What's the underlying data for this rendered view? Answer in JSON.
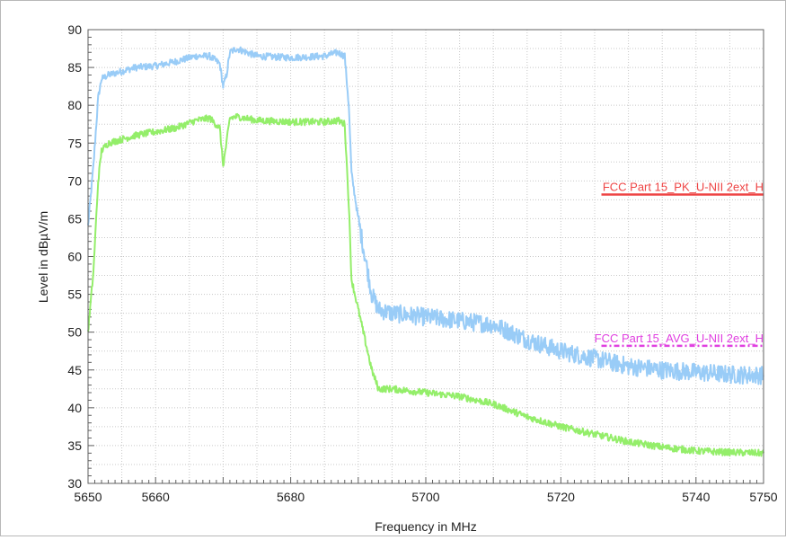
{
  "chart_data": {
    "type": "line",
    "xlabel": "Frequency in MHz",
    "ylabel": "Level in dBµV/m",
    "xlim": [
      5650,
      5750
    ],
    "ylim": [
      30,
      90
    ],
    "x_ticks": [
      "5650",
      "5660",
      "5680",
      "5700",
      "5720",
      "5740",
      "5750"
    ],
    "y_ticks": [
      "30",
      "35",
      "40",
      "45",
      "50",
      "55",
      "60",
      "65",
      "70",
      "75",
      "80",
      "85",
      "90"
    ],
    "grid": true,
    "series": [
      {
        "color": "#99ccf7",
        "x": [
          5650,
          5650.8,
          5651.5,
          5652,
          5653,
          5655,
          5657,
          5660,
          5663,
          5666,
          5668,
          5669.5,
          5670,
          5670.5,
          5671,
          5672,
          5675,
          5680,
          5685,
          5687,
          5688,
          5688.6,
          5689,
          5690,
          5691,
          5692,
          5693,
          5695,
          5700,
          5705,
          5710,
          5715,
          5720,
          5725,
          5730,
          5735,
          5740,
          5745,
          5750
        ],
        "y": [
          64,
          72,
          81,
          83.5,
          84,
          84.5,
          85,
          85.2,
          85.8,
          86.5,
          86.5,
          85.5,
          82.5,
          84,
          87,
          87.5,
          86.5,
          86.3,
          86.5,
          87,
          86.5,
          80,
          71,
          65,
          60,
          55,
          53,
          52.5,
          52,
          51.5,
          51,
          49,
          47.5,
          46.5,
          45.5,
          45,
          44.7,
          44.4,
          44.3
        ]
      },
      {
        "color": "#94ee6a",
        "x": [
          5650,
          5650.8,
          5651.5,
          5652,
          5653,
          5655,
          5657,
          5660,
          5663,
          5666,
          5668,
          5669.5,
          5670,
          5670.5,
          5671,
          5672,
          5675,
          5680,
          5685,
          5687,
          5688,
          5688.6,
          5689,
          5690,
          5691,
          5692,
          5693,
          5695,
          5700,
          5705,
          5710,
          5715,
          5720,
          5725,
          5730,
          5735,
          5740,
          5745,
          5750
        ],
        "y": [
          50,
          58,
          70,
          74,
          75,
          75.5,
          76,
          76.5,
          77,
          78,
          78.3,
          77,
          72,
          75,
          78.3,
          78.5,
          78,
          77.8,
          77.8,
          78,
          77.5,
          67,
          57,
          53,
          49,
          45,
          42.5,
          42.5,
          42,
          41.5,
          40.5,
          38.8,
          37.5,
          36.5,
          35.5,
          34.8,
          34.3,
          34.1,
          34
        ]
      }
    ],
    "limit_lines": [
      {
        "label": "FCC Part 15_PK_U-NII 2ext_H",
        "color": "#ee4444",
        "x": [
          5726,
          5750
        ],
        "y": 68.2,
        "style": "solid"
      },
      {
        "label": "FCC Part 15_AVG_U-NII 2ext_H",
        "color": "#e040e0",
        "x": [
          5726,
          5750
        ],
        "y": 48.2,
        "style": "dashdot"
      }
    ]
  }
}
